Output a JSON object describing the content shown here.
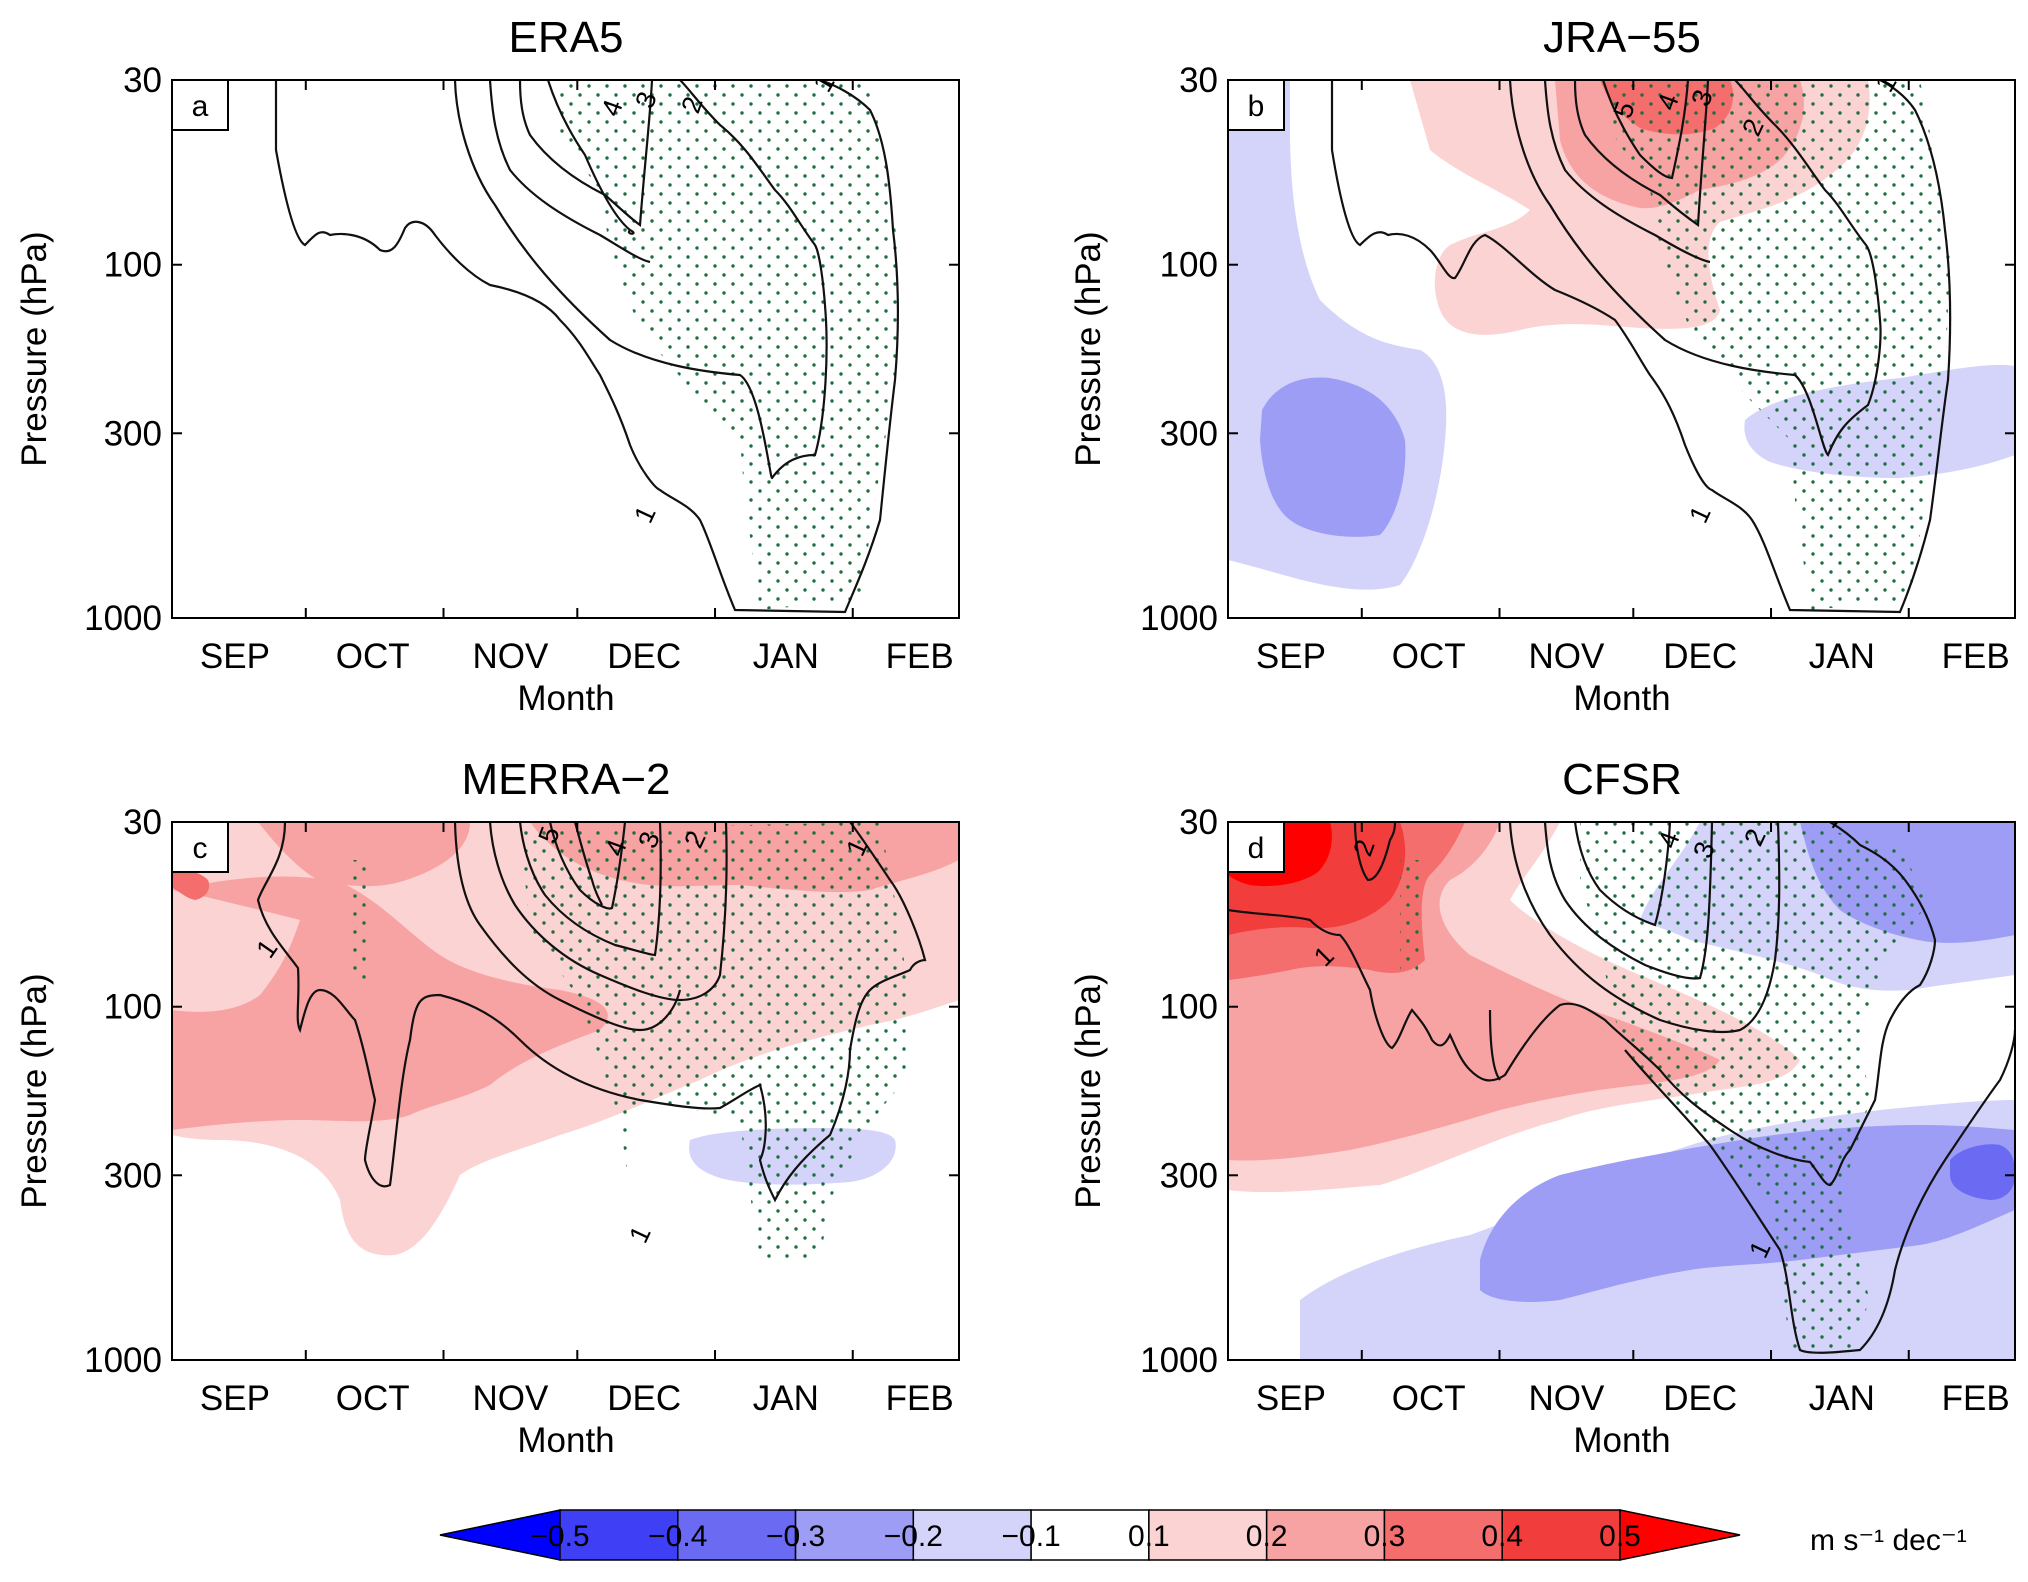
{
  "figure": {
    "colorbar_unit": "m s⁻¹ dec⁻¹",
    "stipple_color": "#1f6e3f",
    "contour_color": "#111111"
  },
  "panels": [
    {
      "title": "ERA5",
      "label": "a",
      "xlabel": "Month",
      "ylabel": "Pressure (hPa)"
    },
    {
      "title": "JRA−55",
      "label": "b",
      "xlabel": "Month",
      "ylabel": "Pressure (hPa)"
    },
    {
      "title": "MERRA−2",
      "label": "c",
      "xlabel": "Month",
      "ylabel": "Pressure (hPa)"
    },
    {
      "title": "CFSR",
      "label": "d",
      "xlabel": "Month",
      "ylabel": "Pressure (hPa)"
    }
  ],
  "chart_data": [
    {
      "type": "heatmap",
      "title": "ERA5",
      "panel": "a",
      "xlabel": "Month",
      "ylabel": "Pressure (hPa)",
      "x_ticks": [
        "SEP",
        "OCT",
        "NOV",
        "DEC",
        "JAN",
        "FEB"
      ],
      "y_ticks": [
        30,
        100,
        300,
        1000
      ],
      "y_scale": "log",
      "y_reversed": true,
      "contour_labels": [
        "4",
        "3",
        "2",
        "1",
        "1"
      ],
      "shading": "none"
    },
    {
      "type": "heatmap",
      "title": "JRA−55",
      "panel": "b",
      "xlabel": "Month",
      "ylabel": "Pressure (hPa)",
      "x_ticks": [
        "SEP",
        "OCT",
        "NOV",
        "DEC",
        "JAN",
        "FEB"
      ],
      "y_ticks": [
        30,
        100,
        300,
        1000
      ],
      "y_scale": "log",
      "y_reversed": true,
      "contour_labels": [
        "5",
        "4",
        "3",
        "2",
        "1",
        "1"
      ],
      "shading": "positive trend 0.1–0.4 above ~150 hPa in Oct–Dec; negative trend −0.1 to −0.2 near 300 hPa in Sep and Jan–Feb"
    },
    {
      "type": "heatmap",
      "title": "MERRA−2",
      "panel": "c",
      "xlabel": "Month",
      "ylabel": "Pressure (hPa)",
      "x_ticks": [
        "SEP",
        "OCT",
        "NOV",
        "DEC",
        "JAN",
        "FEB"
      ],
      "y_ticks": [
        30,
        100,
        300,
        1000
      ],
      "y_scale": "log",
      "y_reversed": true,
      "contour_labels": [
        "5",
        "4",
        "3",
        "2",
        "1",
        "1",
        "1"
      ],
      "shading": "positive trend 0.1–0.3 across Sep–Feb above ~400 hPa; small negative −0.1 patch near 250–300 hPa in Jan"
    },
    {
      "type": "heatmap",
      "title": "CFSR",
      "panel": "d",
      "xlabel": "Month",
      "ylabel": "Pressure (hPa)",
      "x_ticks": [
        "SEP",
        "OCT",
        "NOV",
        "DEC",
        "JAN",
        "FEB"
      ],
      "y_ticks": [
        30,
        100,
        300,
        1000
      ],
      "y_scale": "log",
      "y_reversed": true,
      "contour_labels": [
        "2",
        "4",
        "3",
        "2",
        "1",
        "1",
        "1"
      ],
      "shading": "strong positive trend up to 0.5 in Sep–Oct above 100 hPa; negative −0.1 to −0.3 in Dec–Feb stratosphere and 300–1000 hPa in Oct–Feb"
    },
    {
      "type": "colorbar",
      "ticks": [
        "−0.5",
        "−0.4",
        "−0.3",
        "−0.2",
        "−0.1",
        "0.1",
        "0.2",
        "0.3",
        "0.4",
        "0.5"
      ],
      "colors": [
        "#0000ff",
        "#3f3ff5",
        "#6a6af2",
        "#9d9df5",
        "#d4d4fb",
        "#ffffff",
        "#fcd3d3",
        "#f8a3a3",
        "#f56e6e",
        "#f23d3d",
        "#ff0000"
      ],
      "unit": "m s⁻¹ dec⁻¹"
    }
  ]
}
